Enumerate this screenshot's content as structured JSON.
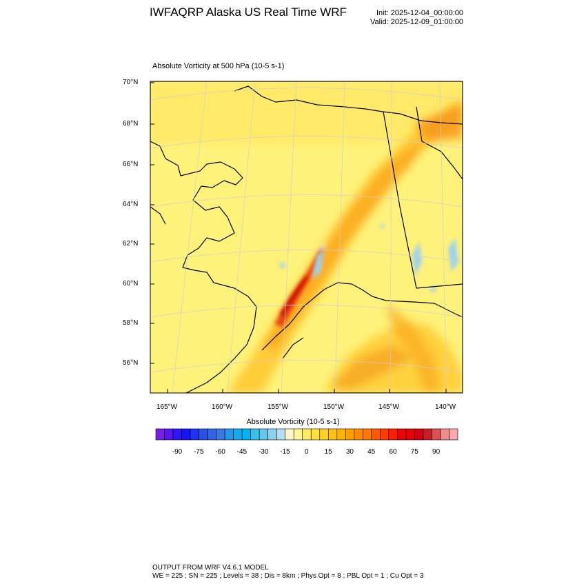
{
  "header": {
    "title": "IWFAQRP Alaska US Real Time WRF",
    "init": "Init: 2025-12-04_00:00:00",
    "valid": "Valid: 2025-12-09_01:00:00"
  },
  "map": {
    "subtitle": "Absolute Vorticity at 500 hPa   (10-5 s-1)",
    "lat_labels": [
      "70°N",
      "68°N",
      "66°N",
      "64°N",
      "62°N",
      "60°N",
      "58°N",
      "56°N"
    ],
    "lon_labels": [
      "165°W",
      "160°W",
      "155°W",
      "150°W",
      "145°W",
      "140°W"
    ],
    "colors": {
      "background": "#fff27a",
      "high": "#f28b00",
      "peak": "#d40000",
      "negative": "#9fd2ee",
      "land_outline": "#000000"
    }
  },
  "colorbar": {
    "title": "Absolute Vorticity  (10-5 s-1)",
    "labels": [
      "-90",
      "-75",
      "-60",
      "-45",
      "-30",
      "-15",
      "0",
      "15",
      "30",
      "45",
      "60",
      "75",
      "90"
    ],
    "colors": [
      "#7a1ee6",
      "#5a14f0",
      "#3214fa",
      "#1414f5",
      "#1e32f0",
      "#2850eb",
      "#3264e6",
      "#3c78e1",
      "#2896eb",
      "#14aaf0",
      "#00b4f0",
      "#3cbeeb",
      "#64c8eb",
      "#8cd2eb",
      "#b4def0",
      "#fff5c8",
      "#fff59b",
      "#ffeb64",
      "#ffe13c",
      "#ffd228",
      "#ffc314",
      "#ffb400",
      "#ffa000",
      "#ff8c00",
      "#ff7800",
      "#ff5a00",
      "#ff3c00",
      "#ff1e00",
      "#f00000",
      "#e60000",
      "#d20014",
      "#c81e28",
      "#dc5050",
      "#f08c8c",
      "#faaaaa"
    ]
  },
  "footer": {
    "line1": "OUTPUT FROM WRF V4.6.1 MODEL",
    "line2": "WE = 225 ; SN = 225 ; Levels = 38 ; Dis = 8km ; Phys Opt = 8 ; PBL Opt = 1 ; Cu Opt = 3"
  }
}
